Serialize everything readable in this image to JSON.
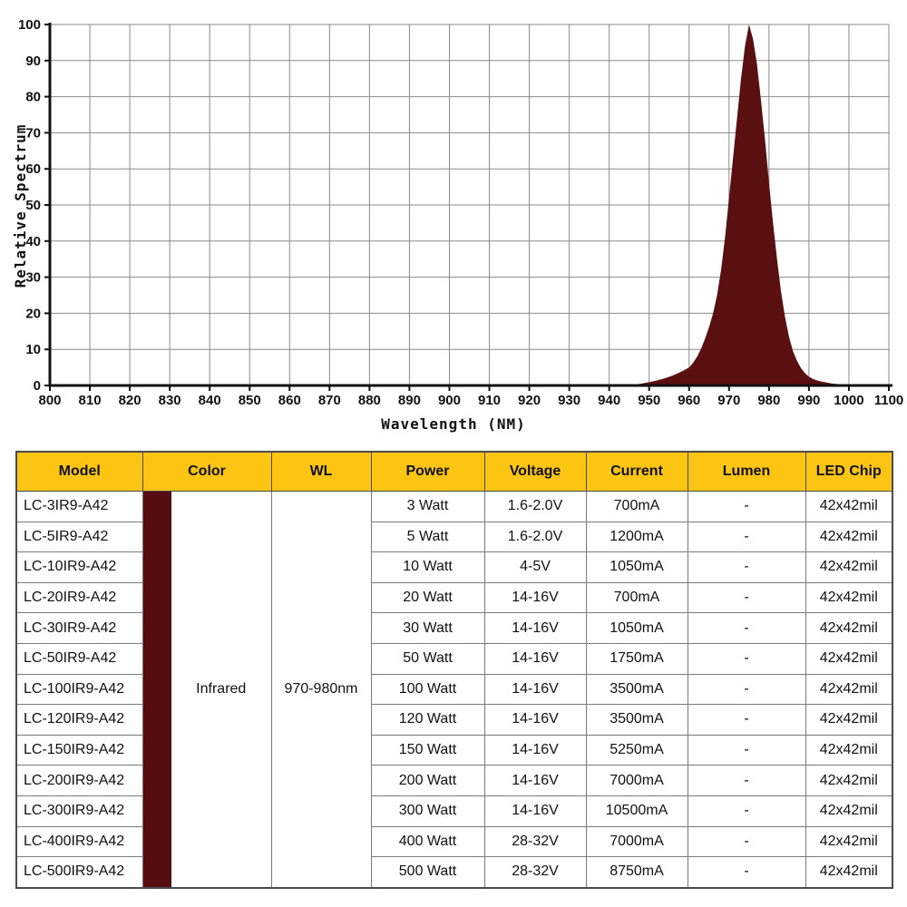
{
  "colors": {
    "header_bg": "#FCC514",
    "swatch": "#560D12",
    "peak_fill": "#5A0F10",
    "grid": "#8A8A8A",
    "axis": "#111111",
    "table_border": "#7A7A7A",
    "table_outer": "#4A4A4A",
    "text": "#111111"
  },
  "chart_data": {
    "type": "area",
    "title": "",
    "xlabel": "Wavelength (NM)",
    "ylabel": "Relative Spectrum",
    "xlim": [
      800,
      1100
    ],
    "ylim": [
      0,
      100
    ],
    "grid": true,
    "legend": "none",
    "x_ticks": [
      800,
      810,
      820,
      830,
      840,
      850,
      860,
      870,
      880,
      890,
      900,
      910,
      920,
      930,
      940,
      950,
      960,
      970,
      980,
      990,
      1000,
      1100
    ],
    "y_ticks": [
      0,
      10,
      20,
      30,
      40,
      50,
      60,
      70,
      80,
      90,
      100
    ],
    "peak_wavelength_nm": 975,
    "peak_value": 100,
    "points": [
      [
        944,
        0
      ],
      [
        946,
        0.2
      ],
      [
        948,
        0.5
      ],
      [
        950,
        0.9
      ],
      [
        952,
        1.4
      ],
      [
        954,
        2
      ],
      [
        956,
        2.8
      ],
      [
        958,
        3.8
      ],
      [
        960,
        5
      ],
      [
        961,
        6.3
      ],
      [
        962,
        8
      ],
      [
        963,
        10.2
      ],
      [
        964,
        13
      ],
      [
        965,
        16.2
      ],
      [
        966,
        20
      ],
      [
        967,
        25
      ],
      [
        968,
        32
      ],
      [
        969,
        41
      ],
      [
        970,
        52
      ],
      [
        971,
        63
      ],
      [
        972,
        74
      ],
      [
        973,
        85
      ],
      [
        974,
        94
      ],
      [
        975,
        100
      ],
      [
        976,
        96
      ],
      [
        977,
        89
      ],
      [
        978,
        79
      ],
      [
        979,
        68
      ],
      [
        980,
        56
      ],
      [
        981,
        45
      ],
      [
        982,
        35
      ],
      [
        983,
        26
      ],
      [
        984,
        19
      ],
      [
        985,
        13.5
      ],
      [
        986,
        9.5
      ],
      [
        987,
        6.8
      ],
      [
        988,
        4.8
      ],
      [
        989,
        3.4
      ],
      [
        990,
        2.4
      ],
      [
        991,
        1.8
      ],
      [
        992,
        1.4
      ],
      [
        993,
        1.1
      ],
      [
        994,
        0.9
      ],
      [
        995,
        0.7
      ],
      [
        996,
        0.5
      ],
      [
        997,
        0.4
      ],
      [
        998,
        0.3
      ],
      [
        999,
        0.2
      ],
      [
        1000,
        0
      ]
    ]
  },
  "table": {
    "headers": [
      "Model",
      "Color",
      "WL",
      "Power",
      "Voltage",
      "Current",
      "Lumen",
      "LED Chip"
    ],
    "merged": {
      "color": "Infrared",
      "wl": "970-980nm"
    },
    "rows": [
      {
        "model": "LC-3IR9-A42",
        "power": "3 Watt",
        "voltage": "1.6-2.0V",
        "current": "700mA",
        "lumen": "-",
        "led_chip": "42x42mil"
      },
      {
        "model": "LC-5IR9-A42",
        "power": "5 Watt",
        "voltage": "1.6-2.0V",
        "current": "1200mA",
        "lumen": "-",
        "led_chip": "42x42mil"
      },
      {
        "model": "LC-10IR9-A42",
        "power": "10 Watt",
        "voltage": "4-5V",
        "current": "1050mA",
        "lumen": "-",
        "led_chip": "42x42mil"
      },
      {
        "model": "LC-20IR9-A42",
        "power": "20 Watt",
        "voltage": "14-16V",
        "current": "700mA",
        "lumen": "-",
        "led_chip": "42x42mil"
      },
      {
        "model": "LC-30IR9-A42",
        "power": "30 Watt",
        "voltage": "14-16V",
        "current": "1050mA",
        "lumen": "-",
        "led_chip": "42x42mil"
      },
      {
        "model": "LC-50IR9-A42",
        "power": "50 Watt",
        "voltage": "14-16V",
        "current": "1750mA",
        "lumen": "-",
        "led_chip": "42x42mil"
      },
      {
        "model": "LC-100IR9-A42",
        "power": "100 Watt",
        "voltage": "14-16V",
        "current": "3500mA",
        "lumen": "-",
        "led_chip": "42x42mil"
      },
      {
        "model": "LC-120IR9-A42",
        "power": "120 Watt",
        "voltage": "14-16V",
        "current": "3500mA",
        "lumen": "-",
        "led_chip": "42x42mil"
      },
      {
        "model": "LC-150IR9-A42",
        "power": "150 Watt",
        "voltage": "14-16V",
        "current": "5250mA",
        "lumen": "-",
        "led_chip": "42x42mil"
      },
      {
        "model": "LC-200IR9-A42",
        "power": "200 Watt",
        "voltage": "14-16V",
        "current": "7000mA",
        "lumen": "-",
        "led_chip": "42x42mil"
      },
      {
        "model": "LC-300IR9-A42",
        "power": "300 Watt",
        "voltage": "14-16V",
        "current": "10500mA",
        "lumen": "-",
        "led_chip": "42x42mil"
      },
      {
        "model": "LC-400IR9-A42",
        "power": "400 Watt",
        "voltage": "28-32V",
        "current": "7000mA",
        "lumen": "-",
        "led_chip": "42x42mil"
      },
      {
        "model": "LC-500IR9-A42",
        "power": "500 Watt",
        "voltage": "28-32V",
        "current": "8750mA",
        "lumen": "-",
        "led_chip": "42x42mil"
      }
    ]
  }
}
